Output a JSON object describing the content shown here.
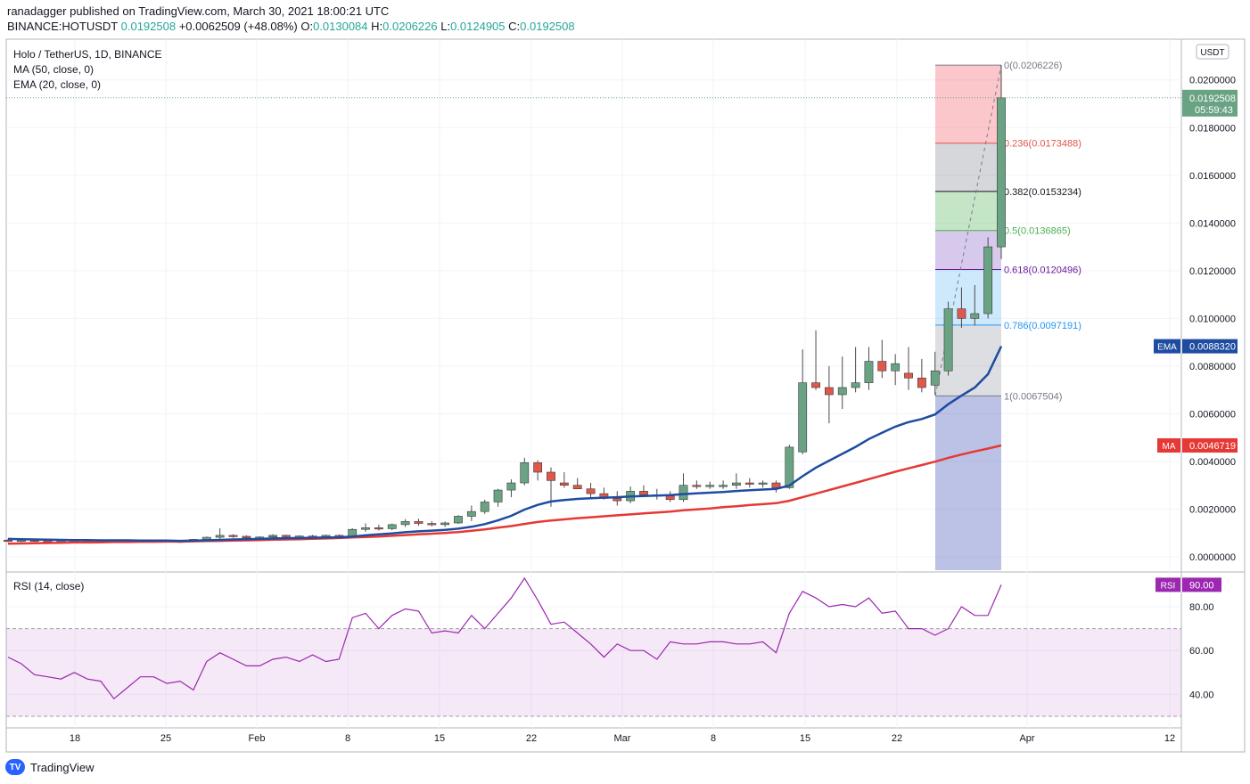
{
  "header": {
    "publisher": "ranadagger published on TradingView.com, March 30, 2021 18:00:21 UTC",
    "symbol_full": "BINANCE:HOTUSDT",
    "last": "0.0192508",
    "change": "+0.0062509 (+48.08%)",
    "o_label": "O:",
    "o": "0.0130084",
    "h_label": "H:",
    "h": "0.0206226",
    "l_label": "L:",
    "l": "0.0124905",
    "c_label": "C:",
    "c": "0.0192508"
  },
  "legend": {
    "title": "Holo / TetherUS, 1D, BINANCE",
    "ma": "MA (50, close, 0)",
    "ema": "EMA (20, close, 0)",
    "rsi": "RSI (14, close)"
  },
  "price_axis": {
    "currency": "USDT",
    "ticks": [
      "0.0200000",
      "0.0180000",
      "0.0160000",
      "0.0140000",
      "0.0120000",
      "0.0100000",
      "0.0080000",
      "0.0060000",
      "0.0040000",
      "0.0020000",
      "0.0000000"
    ],
    "last_price_label": "0.0192508",
    "countdown": "05:59:43",
    "ema_tag": "EMA",
    "ema_value": "0.0088320",
    "ma_tag": "MA",
    "ma_value": "0.0046719"
  },
  "rsi_axis": {
    "ticks": [
      "80.00",
      "60.00",
      "40.00"
    ],
    "tag": "RSI",
    "value": "90.00"
  },
  "time_axis": {
    "labels": [
      "18",
      "25",
      "Feb",
      "8",
      "15",
      "22",
      "Mar",
      "8",
      "15",
      "22",
      "Apr",
      "12"
    ]
  },
  "fib_labels": [
    "0(0.0206226)",
    "0.236(0.0173488)",
    "0.382(0.0153234)",
    "0.5(0.0136865)",
    "0.618(0.0120496)",
    "0.786(0.0097191)",
    "1(0.0067504)"
  ],
  "brand": {
    "name": "TradingView",
    "logo_text": "TV"
  },
  "colors": {
    "up": "#6aa383",
    "down": "#e0574c",
    "ema": "#1e4ca1",
    "ma": "#e53935",
    "rsi": "#9c27b0"
  },
  "chart_data": {
    "type": "candlestick",
    "title": "Holo / TetherUS, 1D, BINANCE",
    "y_range": [
      0,
      0.0206226
    ],
    "candles": [
      [
        0.0007,
        0.00075,
        0.00062,
        0.00068
      ],
      [
        0.00068,
        0.00072,
        0.00062,
        0.0007
      ],
      [
        0.0007,
        0.00073,
        0.00063,
        0.00068
      ],
      [
        0.00068,
        0.00071,
        0.00062,
        0.00066
      ],
      [
        0.00066,
        0.0007,
        0.0006,
        0.00067
      ],
      [
        0.00067,
        0.0007,
        0.00059,
        0.00064
      ],
      [
        0.00064,
        0.00068,
        0.00058,
        0.00066
      ],
      [
        0.00066,
        0.00069,
        0.0006,
        0.00063
      ],
      [
        0.00063,
        0.00071,
        0.00058,
        0.0007
      ],
      [
        0.0007,
        0.00073,
        0.00064,
        0.00067
      ],
      [
        0.00067,
        0.0007,
        0.0006,
        0.00066
      ],
      [
        0.00066,
        0.00071,
        0.00061,
        0.00069
      ],
      [
        0.00069,
        0.00072,
        0.00063,
        0.00066
      ],
      [
        0.00066,
        0.00069,
        0.00058,
        0.00063
      ],
      [
        0.00063,
        0.00075,
        0.0006,
        0.00073
      ],
      [
        0.00073,
        0.00085,
        0.0007,
        0.00082
      ],
      [
        0.00082,
        0.0012,
        0.00075,
        0.0009
      ],
      [
        0.0009,
        0.00095,
        0.0008,
        0.00086
      ],
      [
        0.00086,
        0.0009,
        0.00075,
        0.0008
      ],
      [
        0.0008,
        0.00086,
        0.00072,
        0.00083
      ],
      [
        0.00083,
        0.00095,
        0.00078,
        0.0009
      ],
      [
        0.0009,
        0.00093,
        0.0008,
        0.00085
      ],
      [
        0.00085,
        0.0009,
        0.00078,
        0.00087
      ],
      [
        0.00087,
        0.00092,
        0.0008,
        0.00084
      ],
      [
        0.00084,
        0.00093,
        0.0008,
        0.0009
      ],
      [
        0.0009,
        0.00094,
        0.00082,
        0.00086
      ],
      [
        0.00086,
        0.0012,
        0.00084,
        0.00115
      ],
      [
        0.00115,
        0.0014,
        0.00105,
        0.00122
      ],
      [
        0.00122,
        0.00135,
        0.0011,
        0.00118
      ],
      [
        0.00118,
        0.0014,
        0.00112,
        0.00135
      ],
      [
        0.00135,
        0.00158,
        0.00125,
        0.00148
      ],
      [
        0.00148,
        0.0016,
        0.0013,
        0.0014
      ],
      [
        0.0014,
        0.0015,
        0.00128,
        0.00135
      ],
      [
        0.00135,
        0.00148,
        0.00125,
        0.00142
      ],
      [
        0.00142,
        0.00175,
        0.00138,
        0.0017
      ],
      [
        0.0017,
        0.00215,
        0.0015,
        0.0019
      ],
      [
        0.0019,
        0.0024,
        0.0018,
        0.0023
      ],
      [
        0.0023,
        0.00285,
        0.0021,
        0.0028
      ],
      [
        0.0028,
        0.00325,
        0.0025,
        0.0031
      ],
      [
        0.0031,
        0.00415,
        0.003,
        0.00395
      ],
      [
        0.00395,
        0.00405,
        0.0032,
        0.00355
      ],
      [
        0.00355,
        0.00375,
        0.0021,
        0.0032
      ],
      [
        0.0031,
        0.00355,
        0.0029,
        0.003
      ],
      [
        0.003,
        0.0033,
        0.00285,
        0.00285
      ],
      [
        0.00285,
        0.0031,
        0.0025,
        0.00265
      ],
      [
        0.00265,
        0.0029,
        0.0024,
        0.00245
      ],
      [
        0.00245,
        0.00275,
        0.00215,
        0.00235
      ],
      [
        0.00235,
        0.00295,
        0.00225,
        0.00275
      ],
      [
        0.00275,
        0.003,
        0.0025,
        0.0026
      ],
      [
        0.0026,
        0.00285,
        0.0024,
        0.00255
      ],
      [
        0.00255,
        0.00275,
        0.0023,
        0.0024
      ],
      [
        0.0024,
        0.0035,
        0.0023,
        0.003
      ],
      [
        0.003,
        0.0032,
        0.00285,
        0.00295
      ],
      [
        0.00295,
        0.00315,
        0.00285,
        0.003
      ],
      [
        0.003,
        0.0032,
        0.00285,
        0.003
      ],
      [
        0.003,
        0.0035,
        0.00285,
        0.0031
      ],
      [
        0.0031,
        0.0033,
        0.0029,
        0.00305
      ],
      [
        0.00305,
        0.0032,
        0.0029,
        0.0031
      ],
      [
        0.0031,
        0.0032,
        0.0027,
        0.0029
      ],
      [
        0.0029,
        0.0047,
        0.00285,
        0.0046
      ],
      [
        0.0044,
        0.0087,
        0.0043,
        0.0073
      ],
      [
        0.0073,
        0.0095,
        0.007,
        0.0071
      ],
      [
        0.0071,
        0.008,
        0.0056,
        0.0068
      ],
      [
        0.0068,
        0.0084,
        0.0062,
        0.0071
      ],
      [
        0.0071,
        0.0088,
        0.0069,
        0.0073
      ],
      [
        0.0073,
        0.0088,
        0.007,
        0.0082
      ],
      [
        0.0082,
        0.0091,
        0.0075,
        0.0078
      ],
      [
        0.0078,
        0.0085,
        0.0072,
        0.0081
      ],
      [
        0.0077,
        0.0088,
        0.007,
        0.0075
      ],
      [
        0.0075,
        0.0083,
        0.0069,
        0.0071
      ],
      [
        0.0072,
        0.0086,
        0.0068,
        0.0078
      ],
      [
        0.0078,
        0.0107,
        0.0076,
        0.0104
      ],
      [
        0.0104,
        0.0113,
        0.0096,
        0.01
      ],
      [
        0.01,
        0.0114,
        0.0097,
        0.0102
      ],
      [
        0.0102,
        0.0134,
        0.01,
        0.013
      ],
      [
        0.013,
        0.02062,
        0.01249,
        0.01925
      ]
    ],
    "ema20": [
      0.00075,
      0.00074,
      0.00073,
      0.00072,
      0.00071,
      0.0007,
      0.0007,
      0.00069,
      0.00069,
      0.00069,
      0.00068,
      0.00068,
      0.00068,
      0.00067,
      0.00068,
      0.00069,
      0.00071,
      0.00073,
      0.00074,
      0.00075,
      0.00077,
      0.00078,
      0.00079,
      0.0008,
      0.00081,
      0.00082,
      0.00085,
      0.0009,
      0.00094,
      0.00098,
      0.00103,
      0.00107,
      0.0011,
      0.00113,
      0.00118,
      0.00126,
      0.00137,
      0.00153,
      0.00172,
      0.00198,
      0.00218,
      0.00232,
      0.00238,
      0.00243,
      0.00246,
      0.00248,
      0.0025,
      0.00253,
      0.00255,
      0.00257,
      0.00259,
      0.00263,
      0.00266,
      0.00269,
      0.00272,
      0.00276,
      0.00279,
      0.00282,
      0.00285,
      0.00299,
      0.00338,
      0.00374,
      0.00403,
      0.00432,
      0.00461,
      0.00494,
      0.0052,
      0.00546,
      0.00565,
      0.00578,
      0.00597,
      0.0064,
      0.00676,
      0.0071,
      0.00766,
      0.00883
    ],
    "ma50": [
      0.00055,
      0.00056,
      0.00057,
      0.00058,
      0.00059,
      0.0006,
      0.0006,
      0.00061,
      0.00062,
      0.00062,
      0.00063,
      0.00063,
      0.00064,
      0.00064,
      0.00065,
      0.00066,
      0.00067,
      0.00068,
      0.00069,
      0.0007,
      0.00072,
      0.00073,
      0.00074,
      0.00076,
      0.00077,
      0.00079,
      0.00081,
      0.00083,
      0.00085,
      0.00088,
      0.00091,
      0.00094,
      0.00097,
      0.001,
      0.00104,
      0.00109,
      0.00115,
      0.00122,
      0.00129,
      0.00138,
      0.00146,
      0.00152,
      0.00157,
      0.00162,
      0.00166,
      0.0017,
      0.00174,
      0.00178,
      0.00182,
      0.00186,
      0.0019,
      0.00195,
      0.00199,
      0.00203,
      0.00208,
      0.00212,
      0.00217,
      0.00221,
      0.00225,
      0.00235,
      0.0025,
      0.00265,
      0.0028,
      0.00295,
      0.0031,
      0.00326,
      0.00341,
      0.00357,
      0.00371,
      0.00385,
      0.00399,
      0.00415,
      0.00429,
      0.00442,
      0.00454,
      0.00467
    ],
    "rsi": [
      57,
      54,
      49,
      48,
      47,
      50,
      47,
      46,
      38,
      43,
      48,
      48,
      45,
      46,
      42,
      55,
      59,
      56,
      53,
      53,
      56,
      57,
      55,
      58,
      55,
      56,
      75,
      77,
      70,
      76,
      79,
      78,
      68,
      69,
      68,
      76,
      70,
      77,
      84,
      93,
      83,
      72,
      73,
      68,
      63,
      57,
      63,
      60,
      60,
      56,
      64,
      63,
      63,
      64,
      64,
      63,
      63,
      64,
      59,
      77,
      87,
      84,
      80,
      81,
      80,
      84,
      77,
      78,
      70,
      70,
      67,
      70,
      80,
      76,
      76,
      90
    ],
    "fibonacci": [
      {
        "ratio": 0,
        "price": 0.0206226,
        "label": "0(0.0206226)",
        "color": "#787b86",
        "fill": "rgba(242,54,69,0.28)"
      },
      {
        "ratio": 0.236,
        "price": 0.0173488,
        "label": "0.236(0.0173488)",
        "color": "#e0574c",
        "fill": "rgba(120,123,134,0.30)"
      },
      {
        "ratio": 0.382,
        "price": 0.0153234,
        "label": "0.382(0.0153234)",
        "color": "#131722",
        "fill": "rgba(76,175,80,0.32)"
      },
      {
        "ratio": 0.5,
        "price": 0.0136865,
        "label": "0.5(0.0136865)",
        "color": "#4caf50",
        "fill": "rgba(126,87,194,0.32)"
      },
      {
        "ratio": 0.618,
        "price": 0.0120496,
        "label": "0.618(0.0120496)",
        "color": "#6a1b9a",
        "fill": "rgba(33,150,243,0.22)"
      },
      {
        "ratio": 0.786,
        "price": 0.0097191,
        "label": "0.786(0.0097191)",
        "color": "#2196f3",
        "fill": "rgba(120,123,134,0.25)"
      },
      {
        "ratio": 1,
        "price": 0.0067504,
        "label": "1(0.0067504)",
        "color": "#787b86",
        "fill": "rgba(63,81,181,0.35)"
      }
    ],
    "rsi_band": [
      30,
      70
    ]
  }
}
